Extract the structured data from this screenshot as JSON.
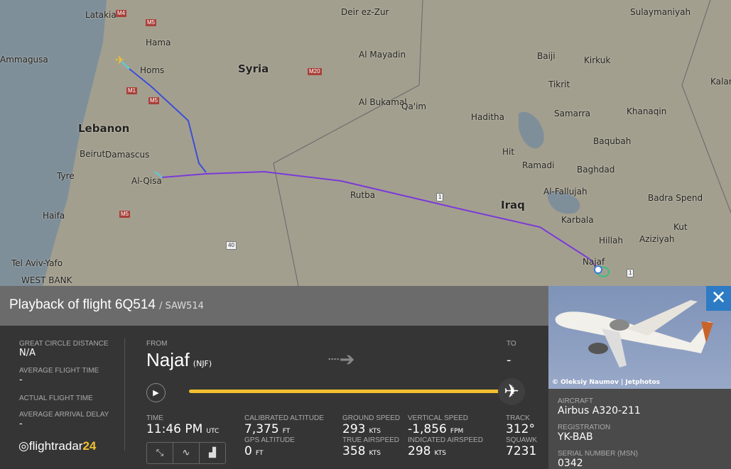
{
  "map": {
    "countries": [
      "Syria",
      "Lebanon",
      "Iraq"
    ],
    "cities": [
      "Latakia",
      "Hama",
      "Homs",
      "Deir ez-Zur",
      "Al Mayadin",
      "Al Bukamal",
      "Qa'im",
      "Haditha",
      "Hit",
      "Ramadi",
      "Baghdad",
      "Baqubah",
      "Samarra",
      "Tikrit",
      "Baiji",
      "Kirkuk",
      "Sulaymaniyah",
      "Kalar",
      "Khanaqin",
      "Al-Fallujah",
      "Karbala",
      "Hillah",
      "Najaf",
      "Kut",
      "Badra Spend",
      "Beirut",
      "Damascus",
      "Tyre",
      "Haifa",
      "Tel Aviv-Yafo",
      "WEST BANK",
      "Rutba",
      "Al-Qisa",
      "Aziziyah",
      "Ammagusa"
    ],
    "roads": [
      "M4",
      "M5",
      "M1",
      "M5",
      "M20",
      "M5",
      "40",
      "1",
      "1"
    ],
    "track_colors": [
      "#55d0e0",
      "#3a4fd8",
      "#7a3ad8",
      "#3ac080"
    ]
  },
  "header": {
    "title": "Playback of flight 6Q514",
    "callsign": "/ SAW514"
  },
  "stats": [
    {
      "label": "GREAT CIRCLE DISTANCE",
      "value": "N/A"
    },
    {
      "label": "AVERAGE FLIGHT TIME",
      "value": "-"
    },
    {
      "label": "ACTUAL FLIGHT TIME",
      "value": ""
    },
    {
      "label": "AVERAGE ARRIVAL DELAY",
      "value": "-"
    }
  ],
  "logo": {
    "text": "flightradar",
    "num": "24"
  },
  "route": {
    "from_label": "FROM",
    "from_city": "Najaf",
    "from_code": "(NJF)",
    "to_label": "TO",
    "to_value": "-",
    "progress": 1.0
  },
  "data": {
    "time": {
      "label": "TIME",
      "value": "11:46 PM",
      "unit": "UTC"
    },
    "cal_alt": {
      "label": "CALIBRATED ALTITUDE",
      "value": "7,375",
      "unit": "FT"
    },
    "gps_alt": {
      "label": "GPS ALTITUDE",
      "value": "0",
      "unit": "FT"
    },
    "gs": {
      "label": "GROUND SPEED",
      "value": "293",
      "unit": "KTS"
    },
    "tas": {
      "label": "TRUE AIRSPEED",
      "value": "358",
      "unit": "KTS"
    },
    "vs": {
      "label": "VERTICAL SPEED",
      "value": "-1,856",
      "unit": "FPM"
    },
    "ias": {
      "label": "INDICATED AIRSPEED",
      "value": "298",
      "unit": "KTS"
    },
    "track": {
      "label": "TRACK",
      "value": "312°"
    },
    "squawk": {
      "label": "SQUAWK",
      "value": "7231"
    }
  },
  "aircraft": {
    "credit": "© Oleksiy Naumov | Jetphotos",
    "type_label": "AIRCRAFT",
    "type": "Airbus A320-211",
    "reg_label": "REGISTRATION",
    "reg": "YK-BAB",
    "msn_label": "SERIAL NUMBER (MSN)",
    "msn": "0342"
  },
  "colors": {
    "accent": "#f0c030",
    "close": "#2d7bc4"
  }
}
